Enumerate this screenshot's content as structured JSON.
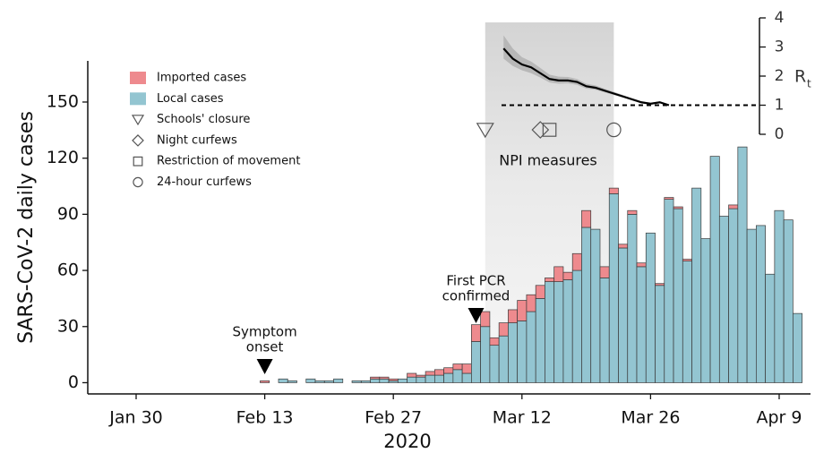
{
  "chart_data": {
    "type": "bar",
    "stacked": true,
    "y_label": "SARS-CoV-2 daily cases",
    "x_label": "2020",
    "x": [
      "Jan 30",
      "Jan 31",
      "Feb 1",
      "Feb 2",
      "Feb 3",
      "Feb 4",
      "Feb 5",
      "Feb 6",
      "Feb 7",
      "Feb 8",
      "Feb 9",
      "Feb 10",
      "Feb 11",
      "Feb 12",
      "Feb 13",
      "Feb 14",
      "Feb 15",
      "Feb 16",
      "Feb 17",
      "Feb 18",
      "Feb 19",
      "Feb 20",
      "Feb 21",
      "Feb 22",
      "Feb 23",
      "Feb 24",
      "Feb 25",
      "Feb 26",
      "Feb 27",
      "Feb 28",
      "Feb 29",
      "Mar 1",
      "Mar 2",
      "Mar 3",
      "Mar 4",
      "Mar 5",
      "Mar 6",
      "Mar 7",
      "Mar 8",
      "Mar 9",
      "Mar 10",
      "Mar 11",
      "Mar 12",
      "Mar 13",
      "Mar 14",
      "Mar 15",
      "Mar 16",
      "Mar 17",
      "Mar 18",
      "Mar 19",
      "Mar 20",
      "Mar 21",
      "Mar 22",
      "Mar 23",
      "Mar 24",
      "Mar 25",
      "Mar 26",
      "Mar 27",
      "Mar 28",
      "Mar 29",
      "Mar 30",
      "Mar 31",
      "Apr 1",
      "Apr 2",
      "Apr 3",
      "Apr 4",
      "Apr 5",
      "Apr 6",
      "Apr 7",
      "Apr 8",
      "Apr 9",
      "Apr 10",
      "Apr 11"
    ],
    "xticks": [
      "Jan 30",
      "Feb 13",
      "Feb 27",
      "Mar 12",
      "Mar 26",
      "Apr 9"
    ],
    "ylim": [
      -6,
      172
    ],
    "yticks": [
      0,
      30,
      60,
      90,
      120,
      150
    ],
    "series": [
      {
        "name": "Imported cases",
        "color": "#ee8a8e",
        "values": [
          null,
          null,
          null,
          null,
          null,
          null,
          null,
          null,
          null,
          null,
          null,
          null,
          null,
          null,
          1,
          0,
          0,
          0,
          0,
          0,
          0,
          0,
          0,
          0,
          0,
          0,
          1,
          1,
          1,
          0,
          2,
          1,
          2,
          3,
          3,
          3,
          5,
          9,
          8,
          4,
          7,
          7,
          11,
          9,
          7,
          2,
          8,
          4,
          9,
          9,
          0,
          6,
          3,
          2,
          2,
          2,
          0,
          1,
          1,
          1,
          1,
          0,
          0,
          0,
          0,
          2,
          0,
          0,
          0,
          0,
          0,
          0,
          0
        ]
      },
      {
        "name": "Local cases",
        "color": "#93c5d1",
        "values": [
          null,
          null,
          null,
          null,
          null,
          null,
          null,
          null,
          null,
          null,
          null,
          null,
          null,
          null,
          0,
          0,
          2,
          1,
          0,
          2,
          1,
          1,
          2,
          0,
          1,
          1,
          2,
          2,
          1,
          2,
          3,
          3,
          4,
          4,
          5,
          7,
          5,
          22,
          30,
          20,
          25,
          32,
          33,
          38,
          45,
          54,
          54,
          55,
          60,
          83,
          82,
          56,
          101,
          72,
          90,
          62,
          80,
          52,
          98,
          93,
          65,
          104,
          77,
          121,
          89,
          93,
          126,
          82,
          84,
          58,
          92,
          87,
          37
        ]
      }
    ],
    "npi_label": "NPI measures",
    "npi_period": [
      "Mar 8",
      "Mar 22"
    ],
    "npi": [
      {
        "name": "Schools' closure",
        "marker": "triangle",
        "date": "Mar 8"
      },
      {
        "name": "Night curfews",
        "marker": "diamond",
        "date": "Mar 14"
      },
      {
        "name": "Restriction of movement",
        "marker": "square",
        "date": "Mar 15"
      },
      {
        "name": "24-hour curfews",
        "marker": "circle",
        "date": "Mar 22"
      }
    ],
    "annotations": [
      {
        "lines": [
          "Symptom",
          "onset"
        ],
        "date": "Feb 13"
      },
      {
        "lines": [
          "First PCR",
          "confirmed"
        ],
        "date": "Mar 7"
      }
    ],
    "rt": {
      "label": "R",
      "label_sub": "t",
      "x": [
        "Mar 10",
        "Mar 11",
        "Mar 12",
        "Mar 13",
        "Mar 14",
        "Mar 15",
        "Mar 16",
        "Mar 17",
        "Mar 18",
        "Mar 19",
        "Mar 20",
        "Mar 21",
        "Mar 22",
        "Mar 23",
        "Mar 24",
        "Mar 25",
        "Mar 26",
        "Mar 27",
        "Mar 28"
      ],
      "values": [
        2.95,
        2.6,
        2.4,
        2.3,
        2.1,
        1.9,
        1.85,
        1.85,
        1.8,
        1.65,
        1.6,
        1.5,
        1.4,
        1.3,
        1.2,
        1.1,
        1.05,
        1.1,
        1.0
      ],
      "lower": [
        2.6,
        2.35,
        2.2,
        2.1,
        1.95,
        1.78,
        1.74,
        1.75,
        1.7,
        1.57,
        1.53,
        1.44,
        1.35,
        1.26,
        1.16,
        1.07,
        1.02,
        1.07,
        0.97
      ],
      "upper": [
        3.4,
        2.95,
        2.65,
        2.5,
        2.28,
        2.05,
        1.98,
        1.97,
        1.9,
        1.74,
        1.68,
        1.57,
        1.46,
        1.35,
        1.24,
        1.13,
        1.08,
        1.13,
        1.03
      ],
      "threshold": 1,
      "ylim": [
        0,
        4
      ],
      "yticks": [
        0,
        1,
        2,
        3,
        4
      ]
    }
  }
}
